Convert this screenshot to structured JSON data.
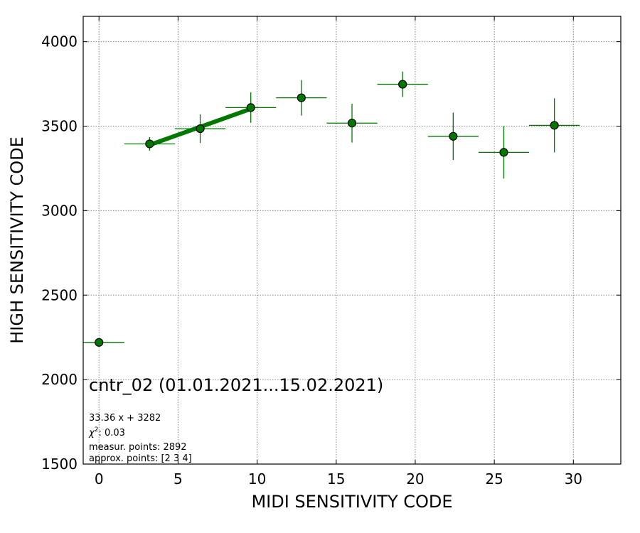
{
  "chart_data": {
    "type": "scatter",
    "title": "cntr_02 (01.01.2021...15.02.2021)",
    "xlabel": "MIDI SENSITIVITY CODE",
    "ylabel": "HIGH SENSITIVITY CODE",
    "xlim": [
      -1,
      33
    ],
    "ylim": [
      1500,
      4150
    ],
    "xticks": [
      0,
      5,
      10,
      15,
      20,
      25,
      30
    ],
    "yticks": [
      1500,
      2000,
      2500,
      3000,
      3500,
      4000
    ],
    "grid": true,
    "points": [
      {
        "x": 0,
        "y": 2220,
        "xerr": 1.6,
        "yerr": 0
      },
      {
        "x": 3.2,
        "y": 3395,
        "xerr": 1.6,
        "yerr": 40
      },
      {
        "x": 6.4,
        "y": 3485,
        "xerr": 1.6,
        "yerr": 85
      },
      {
        "x": 9.6,
        "y": 3610,
        "xerr": 1.6,
        "yerr": 90
      },
      {
        "x": 12.8,
        "y": 3668,
        "xerr": 1.6,
        "yerr": 105
      },
      {
        "x": 16.0,
        "y": 3518,
        "xerr": 1.6,
        "yerr": 115
      },
      {
        "x": 19.2,
        "y": 3748,
        "xerr": 1.6,
        "yerr": 75
      },
      {
        "x": 22.4,
        "y": 3440,
        "xerr": 1.6,
        "yerr": 140
      },
      {
        "x": 25.6,
        "y": 3345,
        "xerr": 1.6,
        "yerr": 155
      },
      {
        "x": 28.8,
        "y": 3505,
        "xerr": 1.6,
        "yerr": 160
      }
    ],
    "fit": {
      "slope": 33.36,
      "intercept": 3282,
      "x_range": [
        3.2,
        9.6
      ]
    },
    "annotations": {
      "equation": "33.36 x + 3282",
      "chi2_label": "χ",
      "chi2_sup": "2",
      "chi2_value": ": 0.03",
      "measur_points": "measur. points: 2892",
      "approx_points": "approx. points: [2 3 4]"
    },
    "colors": {
      "series": "#007800",
      "marker_edge": "#000000",
      "grid": "#888888"
    }
  }
}
